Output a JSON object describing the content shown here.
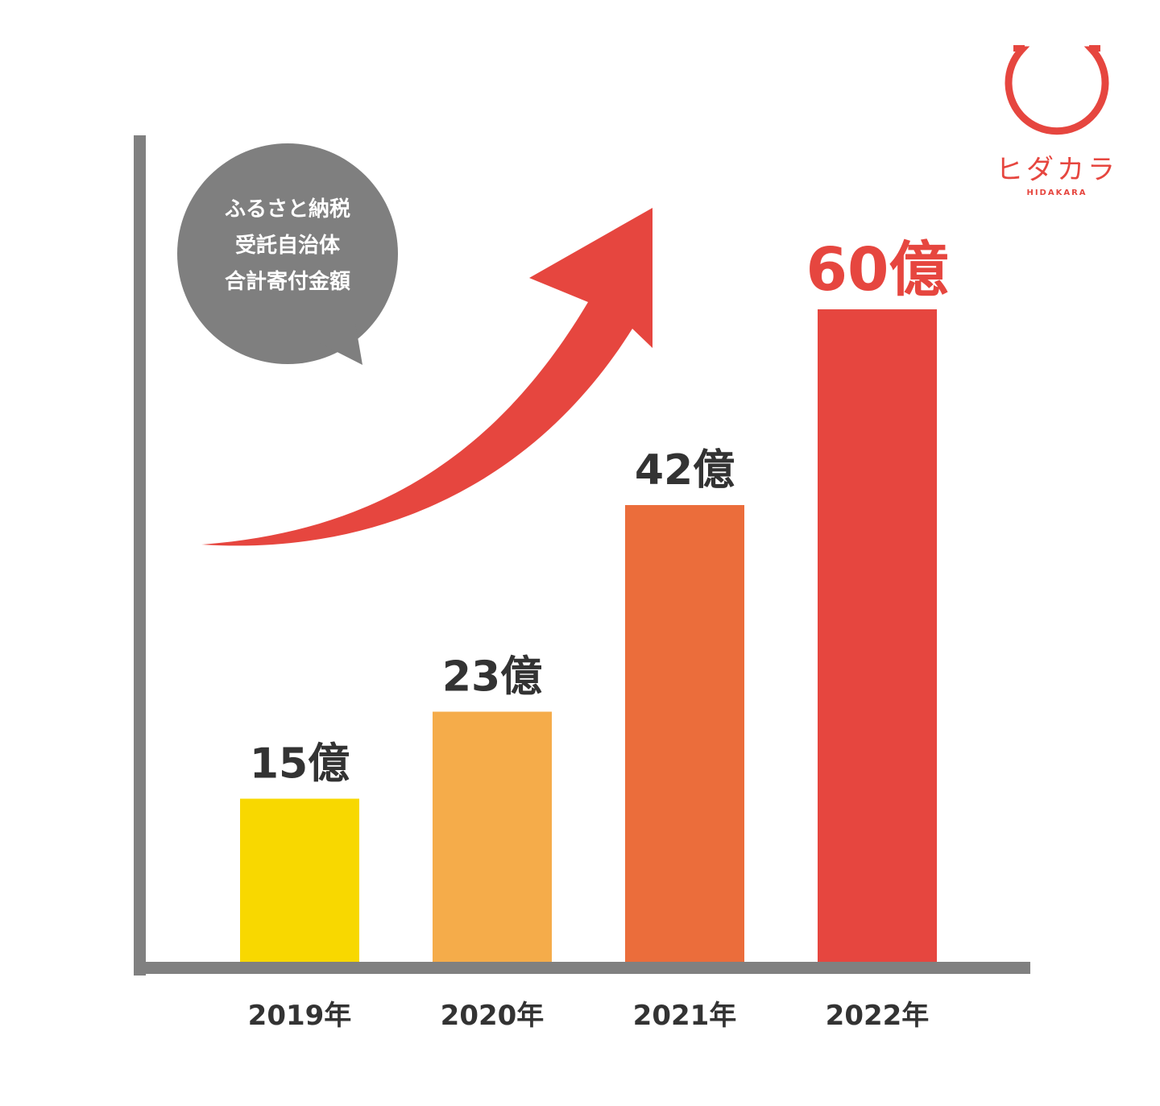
{
  "chart_data": {
    "type": "bar",
    "categories": [
      "2019年",
      "2020年",
      "2021年",
      "2022年"
    ],
    "values": [
      15,
      23,
      42,
      60
    ],
    "value_labels": [
      "15億",
      "23億",
      "42億",
      "60億"
    ],
    "colors": [
      "#f8d800",
      "#f5ac4a",
      "#eb6d3b",
      "#e6463f"
    ],
    "annotation": [
      "ふるさと納税",
      "受託自治体",
      "合計寄付金額"
    ]
  },
  "logo": {
    "text": "ヒダカラ",
    "subtext": "HIDAKARA"
  }
}
